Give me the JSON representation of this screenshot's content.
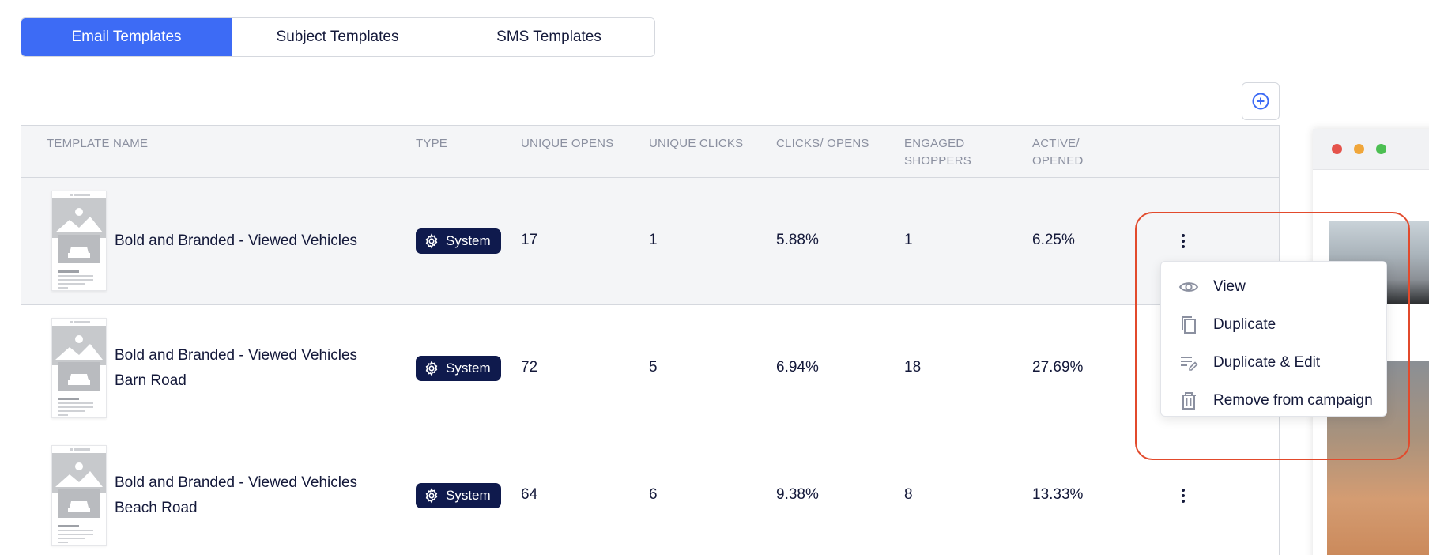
{
  "tabs": [
    {
      "label": "Email Templates",
      "active": true
    },
    {
      "label": "Subject Templates",
      "active": false
    },
    {
      "label": "SMS Templates",
      "active": false
    }
  ],
  "add_button": {
    "icon": "plus-circle-icon"
  },
  "table": {
    "headers": {
      "template_name": "TEMPLATE NAME",
      "type": "TYPE",
      "unique_opens": "UNIQUE OPENS",
      "unique_clicks": "UNIQUE CLICKS",
      "clicks_opens": "CLICKS/ OPENS",
      "engaged_1": "ENGAGED",
      "engaged_2": "SHOPPERS",
      "active_1": "ACTIVE/",
      "active_2": "OPENED"
    },
    "rows": [
      {
        "name_line1": "Bold and Branded - Viewed Vehicles",
        "name_line2": "",
        "type": "System",
        "unique_opens": "17",
        "unique_clicks": "1",
        "clicks_opens": "5.88%",
        "engaged": "1",
        "active_opened": "6.25%"
      },
      {
        "name_line1": "Bold and Branded - Viewed Vehicles",
        "name_line2": "Barn Road",
        "type": "System",
        "unique_opens": "72",
        "unique_clicks": "5",
        "clicks_opens": "6.94%",
        "engaged": "18",
        "active_opened": "27.69%"
      },
      {
        "name_line1": "Bold and Branded - Viewed Vehicles",
        "name_line2": "Beach Road",
        "type": "System",
        "unique_opens": "64",
        "unique_clicks": "6",
        "clicks_opens": "9.38%",
        "engaged": "8",
        "active_opened": "13.33%"
      }
    ]
  },
  "menu": {
    "items": [
      {
        "label": "View",
        "icon": "eye-icon"
      },
      {
        "label": "Duplicate",
        "icon": "copy-icon"
      },
      {
        "label": "Duplicate & Edit",
        "icon": "edit-list-icon"
      },
      {
        "label": "Remove from campaign",
        "icon": "trash-icon"
      }
    ]
  },
  "colors": {
    "accent": "#3d6bf5",
    "badge": "#0f1a4d",
    "highlight": "#e24a2c",
    "dot_red": "#e5534b",
    "dot_yellow": "#f0a63a",
    "dot_green": "#4cbf52"
  }
}
